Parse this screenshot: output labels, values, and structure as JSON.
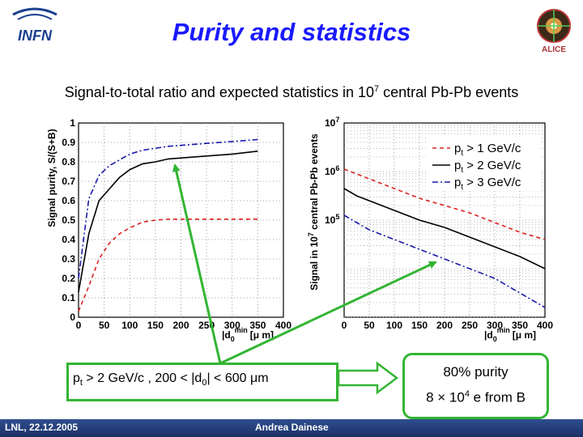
{
  "title": "Purity and statistics",
  "subtitle": {
    "text_before": "Signal-to-total ratio and expected statistics in 10",
    "exponent": "7",
    "text_after": " central Pb-Pb events"
  },
  "logos": {
    "left": "INFN",
    "right": "ALICE"
  },
  "footer": {
    "left": "LNL, 22.12.2005",
    "center": "Andrea Dainese"
  },
  "chart_data": [
    {
      "type": "line",
      "title": "",
      "xlabel_base": "|d",
      "xlabel_sub": "0",
      "xlabel_sup": "min",
      "xlabel_unit": "[μ m]",
      "ylabel": "Signal purity, S/(S+B)",
      "xlim": [
        0,
        400
      ],
      "ylim": [
        0,
        1
      ],
      "xticks": [
        "0",
        "50",
        "100",
        "150",
        "200",
        "250",
        "300",
        "350",
        "400"
      ],
      "xtick_values": [
        0,
        50,
        100,
        150,
        200,
        250,
        300,
        350,
        400
      ],
      "yticks": [
        "0",
        "0.1",
        "0.2",
        "0.3",
        "0.4",
        "0.5",
        "0.6",
        "0.7",
        "0.8",
        "0.9",
        "1"
      ],
      "ytick_values": [
        0,
        0.1,
        0.2,
        0.3,
        0.4,
        0.5,
        0.6,
        0.7,
        0.8,
        0.9,
        1.0
      ],
      "grid": true,
      "x": [
        0,
        20,
        40,
        60,
        80,
        100,
        125,
        150,
        175,
        200,
        250,
        300,
        350
      ],
      "series": [
        {
          "name": "pt > 1 GeV/c",
          "color": "#dd2222",
          "dash": "5,4",
          "values": [
            0.03,
            0.16,
            0.3,
            0.38,
            0.43,
            0.46,
            0.49,
            0.5,
            0.505,
            0.505,
            0.505,
            0.505,
            0.505
          ]
        },
        {
          "name": "pt > 2 GeV/c",
          "color": "#000000",
          "dash": "",
          "values": [
            0.13,
            0.43,
            0.6,
            0.66,
            0.72,
            0.76,
            0.79,
            0.8,
            0.815,
            0.82,
            0.83,
            0.84,
            0.855
          ]
        },
        {
          "name": "pt > 3 GeV/c",
          "color": "#1a1aaa",
          "dash": "7,3,2,3",
          "values": [
            0.2,
            0.61,
            0.73,
            0.78,
            0.81,
            0.84,
            0.86,
            0.87,
            0.88,
            0.885,
            0.895,
            0.905,
            0.915
          ]
        }
      ]
    },
    {
      "type": "line",
      "title": "",
      "xlabel_base": "|d",
      "xlabel_sub": "0",
      "xlabel_sup": "min",
      "xlabel_unit": "[μ m]",
      "ylabel_base": "Signal in 10",
      "ylabel_sup": "7",
      "ylabel_after": " central Pb-Pb events",
      "ylabel": "Signal in 10^7 central Pb-Pb events",
      "xlim": [
        0,
        400
      ],
      "ylim_log10": [
        3,
        7
      ],
      "xticks": [
        "0",
        "50",
        "100",
        "150",
        "200",
        "250",
        "300",
        "350",
        "400"
      ],
      "xtick_values": [
        0,
        50,
        100,
        150,
        200,
        250,
        300,
        350,
        400
      ],
      "yticks": [
        {
          "base": "10",
          "exp": "7",
          "value": 7
        },
        {
          "base": "10",
          "exp": "6",
          "value": 6
        },
        {
          "base": "10",
          "exp": "5",
          "value": 5
        }
      ],
      "grid": true,
      "legend_position": "top-right",
      "x": [
        0,
        25,
        50,
        100,
        150,
        200,
        250,
        300,
        350,
        400
      ],
      "series": [
        {
          "name": "pt > 1 GeV/c",
          "label_base": "p",
          "label_sub": "t",
          "label_rest": " > 1 GeV/c",
          "color": "#dd2222",
          "dash": "5,4",
          "log10_values": [
            6.05,
            5.95,
            5.85,
            5.65,
            5.45,
            5.3,
            5.15,
            4.95,
            4.75,
            4.6
          ]
        },
        {
          "name": "pt > 2 GeV/c",
          "label_base": "p",
          "label_sub": "t",
          "label_rest": " > 2 GeV/c",
          "color": "#000000",
          "dash": "",
          "log10_values": [
            5.65,
            5.5,
            5.4,
            5.2,
            5.0,
            4.85,
            4.65,
            4.45,
            4.25,
            4.0
          ]
        },
        {
          "name": "pt > 3 GeV/c",
          "label_base": "p",
          "label_sub": "t",
          "label_rest": " > 3 GeV/c",
          "color": "#1a1aaa",
          "dash": "7,3,2,3",
          "log10_values": [
            5.1,
            4.95,
            4.8,
            4.6,
            4.4,
            4.2,
            4.0,
            3.8,
            3.5,
            3.2
          ]
        }
      ]
    }
  ],
  "condition": {
    "pt": "p",
    "pt_sub": "t",
    "text_mid": " > 2 GeV/c ,  200  < |d",
    "d_sub": "0",
    "text_end": "| < 600 μm"
  },
  "result": {
    "line1": "80% purity",
    "line2_base": "8 × 10",
    "line2_exp": "4",
    "line2_rest": " e from B"
  },
  "colors": {
    "title": "#1a1aff",
    "arrow": "#33b533",
    "footer": "#1b2f66"
  }
}
